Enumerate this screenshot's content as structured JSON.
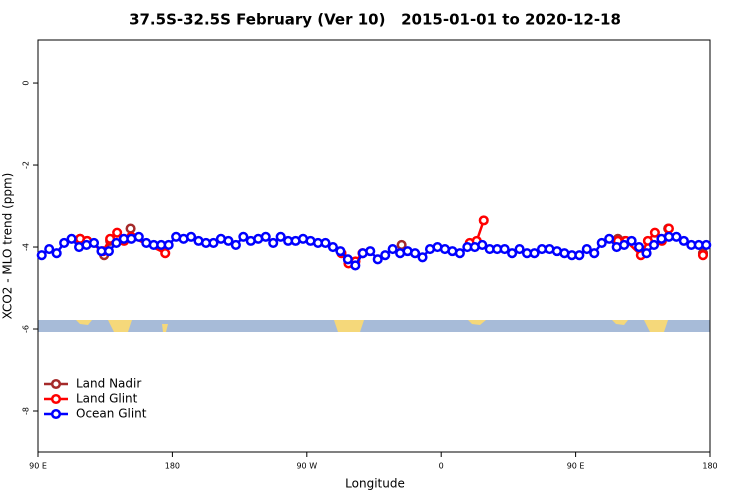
{
  "chart_data": {
    "type": "line",
    "title": "37.5S-32.5S February (Ver 10)   2015-01-01 to 2020-12-18",
    "x_label": "Longitude",
    "y_label": "XCO2 - MLO trend (ppm)",
    "xlim": [
      90,
      540
    ],
    "ylim": [
      -9.0,
      1.05
    ],
    "xticks": [
      {
        "value": 90,
        "label": "90 E"
      },
      180,
      {
        "value": 270,
        "label": "90 W"
      },
      {
        "value": 360,
        "label": "0"
      },
      {
        "value": 450,
        "label": "90 E"
      },
      {
        "value": 540,
        "label": "180"
      }
    ],
    "yticks": [
      0,
      -2,
      -4,
      -6,
      -8
    ],
    "legend": "bottom-left",
    "series": [
      {
        "name": "Land Nadir",
        "color": "#a52a2a",
        "x": [
          118.2,
          122.9,
          null,
          134.3,
          138.3,
          null,
          152.0,
          null,
          333.5,
          null,
          478.3,
          483.0,
          null,
          512.0,
          null,
          535.3
        ],
        "values": [
          -3.8,
          -3.85,
          null,
          -4.2,
          -3.85,
          null,
          -3.55,
          null,
          -3.95,
          null,
          -3.8,
          -3.85,
          null,
          -3.55,
          null,
          -4.15
        ]
      },
      {
        "name": "Land Glint",
        "color": "#ff0000",
        "x": [
          118.2,
          122.9,
          133.6,
          138.3,
          143.0,
          147.7,
          152.4,
          175.2,
          null,
          293.2,
          297.9,
          302.6,
          307.3,
          null,
          379.1,
          383.8,
          388.5,
          null,
          478.3,
          483.7,
          493.7,
          498.4,
          503.1,
          507.8,
          512.5,
          null,
          535.3
        ],
        "values": [
          -3.8,
          -3.85,
          -4.1,
          -3.8,
          -3.65,
          -3.85,
          -3.75,
          -4.15,
          null,
          -4.15,
          -4.4,
          -4.35,
          -4.15,
          null,
          -3.9,
          -3.85,
          -3.35,
          null,
          -3.85,
          -3.85,
          -4.2,
          -3.85,
          -3.65,
          -3.85,
          -3.55,
          null,
          -4.2
        ]
      },
      {
        "name": "Ocean Glint",
        "color": "#0000ff",
        "x": [
          92.5,
          97.5,
          102.5,
          107.5,
          112.5,
          117.5,
          122.5,
          127.5,
          132.5,
          137.5,
          142.5,
          147.5,
          152.5,
          157.5,
          162.5,
          167.5,
          172.5,
          177.5,
          182.5,
          187.5,
          192.5,
          197.5,
          202.5,
          207.5,
          212.5,
          217.5,
          222.5,
          227.5,
          232.5,
          237.5,
          242.5,
          247.5,
          252.5,
          257.5,
          262.5,
          267.5,
          272.5,
          277.5,
          282.5,
          287.5,
          292.5,
          297.5,
          302.5,
          307.5,
          312.5,
          317.5,
          322.5,
          327.5,
          332.5,
          337.5,
          342.5,
          347.5,
          352.5,
          357.5,
          362.5,
          367.5,
          372.5,
          377.5,
          382.5,
          387.5,
          392.5,
          397.5,
          402.5,
          407.5,
          412.5,
          417.5,
          422.5,
          427.5,
          432.5,
          437.5,
          442.5,
          447.5,
          452.5,
          457.5,
          462.5,
          467.5,
          472.5,
          477.5,
          482.5,
          487.5,
          492.5,
          497.5,
          502.5,
          507.5,
          512.5,
          517.5,
          522.5,
          527.5,
          532.5,
          537.5
        ],
        "values": [
          -4.2,
          -4.05,
          -4.15,
          -3.9,
          -3.8,
          -4.0,
          -3.95,
          -3.9,
          -4.1,
          -4.1,
          -3.9,
          -3.8,
          -3.8,
          -3.75,
          -3.9,
          -3.95,
          -3.95,
          -3.95,
          -3.75,
          -3.8,
          -3.75,
          -3.85,
          -3.9,
          -3.9,
          -3.8,
          -3.85,
          -3.95,
          -3.75,
          -3.85,
          -3.8,
          -3.75,
          -3.9,
          -3.75,
          -3.85,
          -3.85,
          -3.8,
          -3.85,
          -3.9,
          -3.9,
          -4.0,
          -4.1,
          -4.3,
          -4.45,
          -4.15,
          -4.1,
          -4.3,
          -4.2,
          -4.05,
          -4.15,
          -4.1,
          -4.15,
          -4.25,
          -4.05,
          -4.0,
          -4.05,
          -4.1,
          -4.15,
          -4.0,
          -4.0,
          -3.95,
          -4.05,
          -4.05,
          -4.05,
          -4.15,
          -4.05,
          -4.15,
          -4.15,
          -4.05,
          -4.05,
          -4.1,
          -4.15,
          -4.2,
          -4.2,
          -4.05,
          -4.15,
          -3.9,
          -3.8,
          -4.0,
          -3.95,
          -3.85,
          -4.0,
          -4.15,
          -3.95,
          -3.8,
          -3.75,
          -3.75,
          -3.85,
          -3.95,
          -3.95,
          -3.95
        ]
      }
    ]
  }
}
